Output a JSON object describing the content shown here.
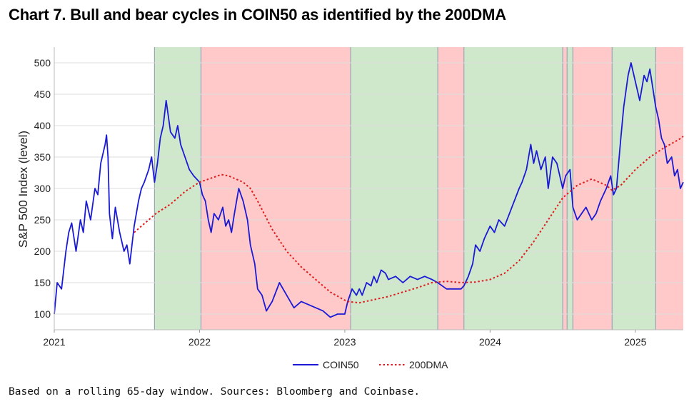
{
  "title": "Chart 7. Bull and bear cycles in COIN50 as identified by the 200DMA",
  "footnote": "Based on a rolling 65-day window. Sources: Bloomberg and Coinbase.",
  "colors": {
    "coin50": "#1a1ad6",
    "dma200": "#e01b1b",
    "bull_band": "#cfe8cc",
    "bear_band": "#ffc9c9",
    "band_edge": "#9aa6b4",
    "grid": "#dddddd"
  },
  "chart_data": {
    "type": "line",
    "xlabel": "",
    "ylabel": "S&P 500 Index (level)",
    "ylim": [
      75,
      525
    ],
    "yticks": [
      100,
      150,
      200,
      250,
      300,
      350,
      400,
      450,
      500
    ],
    "xlim": [
      2021.0,
      2025.33
    ],
    "xticks": [
      {
        "value": 2021,
        "label": "2021"
      },
      {
        "value": 2022,
        "label": "2022"
      },
      {
        "value": 2023,
        "label": "2023"
      },
      {
        "value": 2024,
        "label": "2024"
      },
      {
        "value": 2025,
        "label": "2025"
      }
    ],
    "grid": true,
    "legend_position": "bottom-center",
    "regimes": [
      {
        "start": 2021.69,
        "end": 2022.01,
        "type": "bull"
      },
      {
        "start": 2022.01,
        "end": 2023.04,
        "type": "bear"
      },
      {
        "start": 2023.04,
        "end": 2023.64,
        "type": "bull"
      },
      {
        "start": 2023.64,
        "end": 2023.82,
        "type": "bear"
      },
      {
        "start": 2023.82,
        "end": 2024.5,
        "type": "bull"
      },
      {
        "start": 2024.5,
        "end": 2024.53,
        "type": "bear"
      },
      {
        "start": 2024.53,
        "end": 2024.57,
        "type": "bull"
      },
      {
        "start": 2024.57,
        "end": 2024.84,
        "type": "bear"
      },
      {
        "start": 2024.84,
        "end": 2025.14,
        "type": "bull"
      },
      {
        "start": 2025.14,
        "end": 2025.33,
        "type": "bear"
      }
    ],
    "series": [
      {
        "name": "COIN50",
        "style": "solid",
        "x": [
          2021.0,
          2021.02,
          2021.05,
          2021.08,
          2021.1,
          2021.12,
          2021.15,
          2021.18,
          2021.2,
          2021.22,
          2021.25,
          2021.28,
          2021.3,
          2021.32,
          2021.35,
          2021.36,
          2021.37,
          2021.38,
          2021.4,
          2021.42,
          2021.45,
          2021.48,
          2021.5,
          2021.52,
          2021.55,
          2021.58,
          2021.6,
          2021.62,
          2021.65,
          2021.67,
          2021.69,
          2021.71,
          2021.73,
          2021.75,
          2021.77,
          2021.8,
          2021.83,
          2021.85,
          2021.87,
          2021.9,
          2021.93,
          2021.96,
          2022.0,
          2022.02,
          2022.04,
          2022.06,
          2022.08,
          2022.1,
          2022.13,
          2022.16,
          2022.18,
          2022.2,
          2022.22,
          2022.24,
          2022.27,
          2022.3,
          2022.33,
          2022.35,
          2022.38,
          2022.4,
          2022.43,
          2022.46,
          2022.5,
          2022.55,
          2022.6,
          2022.65,
          2022.7,
          2022.75,
          2022.8,
          2022.85,
          2022.9,
          2022.95,
          2023.0,
          2023.02,
          2023.05,
          2023.08,
          2023.1,
          2023.12,
          2023.15,
          2023.18,
          2023.2,
          2023.22,
          2023.25,
          2023.28,
          2023.3,
          2023.35,
          2023.4,
          2023.45,
          2023.5,
          2023.55,
          2023.6,
          2023.64,
          2023.7,
          2023.75,
          2023.8,
          2023.82,
          2023.85,
          2023.88,
          2023.9,
          2023.93,
          2023.96,
          2024.0,
          2024.03,
          2024.06,
          2024.1,
          2024.15,
          2024.2,
          2024.22,
          2024.25,
          2024.28,
          2024.3,
          2024.32,
          2024.35,
          2024.38,
          2024.4,
          2024.43,
          2024.46,
          2024.5,
          2024.52,
          2024.55,
          2024.57,
          2024.6,
          2024.63,
          2024.66,
          2024.7,
          2024.73,
          2024.76,
          2024.8,
          2024.83,
          2024.85,
          2024.87,
          2024.9,
          2024.92,
          2024.95,
          2024.97,
          2025.0,
          2025.03,
          2025.06,
          2025.08,
          2025.1,
          2025.12,
          2025.14,
          2025.16,
          2025.18,
          2025.2,
          2025.22,
          2025.25,
          2025.27,
          2025.29,
          2025.31,
          2025.33
        ],
        "values": [
          100,
          150,
          140,
          200,
          230,
          245,
          200,
          250,
          230,
          280,
          250,
          300,
          290,
          340,
          370,
          385,
          350,
          260,
          220,
          270,
          230,
          200,
          210,
          180,
          240,
          280,
          300,
          310,
          330,
          350,
          310,
          340,
          380,
          400,
          440,
          390,
          380,
          400,
          370,
          350,
          330,
          320,
          310,
          290,
          280,
          250,
          230,
          260,
          250,
          270,
          240,
          250,
          230,
          260,
          300,
          280,
          250,
          210,
          180,
          140,
          130,
          105,
          120,
          150,
          130,
          110,
          120,
          115,
          110,
          105,
          95,
          100,
          100,
          120,
          140,
          130,
          140,
          130,
          150,
          145,
          160,
          150,
          170,
          165,
          155,
          160,
          150,
          160,
          155,
          160,
          155,
          150,
          140,
          140,
          140,
          145,
          160,
          180,
          210,
          200,
          220,
          240,
          230,
          250,
          240,
          270,
          300,
          310,
          330,
          370,
          340,
          360,
          330,
          350,
          300,
          350,
          340,
          300,
          320,
          330,
          270,
          250,
          260,
          270,
          250,
          260,
          280,
          300,
          320,
          290,
          300,
          380,
          430,
          480,
          500,
          470,
          440,
          480,
          470,
          490,
          460,
          430,
          410,
          380,
          370,
          340,
          350,
          320,
          330,
          300,
          310
        ]
      },
      {
        "name": "200DMA",
        "style": "dotted",
        "x": [
          2021.55,
          2021.6,
          2021.7,
          2021.8,
          2021.9,
          2022.0,
          2022.1,
          2022.15,
          2022.2,
          2022.3,
          2022.35,
          2022.4,
          2022.5,
          2022.6,
          2022.7,
          2022.8,
          2022.9,
          2023.0,
          2023.02,
          2023.1,
          2023.2,
          2023.3,
          2023.4,
          2023.5,
          2023.6,
          2023.7,
          2023.8,
          2023.9,
          2024.0,
          2024.1,
          2024.2,
          2024.3,
          2024.4,
          2024.5,
          2024.6,
          2024.7,
          2024.8,
          2024.84,
          2024.9,
          2025.0,
          2025.1,
          2025.2,
          2025.3,
          2025.33
        ],
        "values": [
          230,
          240,
          260,
          275,
          295,
          310,
          318,
          322,
          320,
          310,
          300,
          280,
          235,
          200,
          175,
          155,
          135,
          122,
          120,
          118,
          123,
          128,
          135,
          142,
          150,
          152,
          150,
          151,
          155,
          165,
          185,
          215,
          250,
          285,
          305,
          315,
          305,
          297,
          305,
          330,
          350,
          365,
          378,
          383
        ]
      }
    ]
  }
}
